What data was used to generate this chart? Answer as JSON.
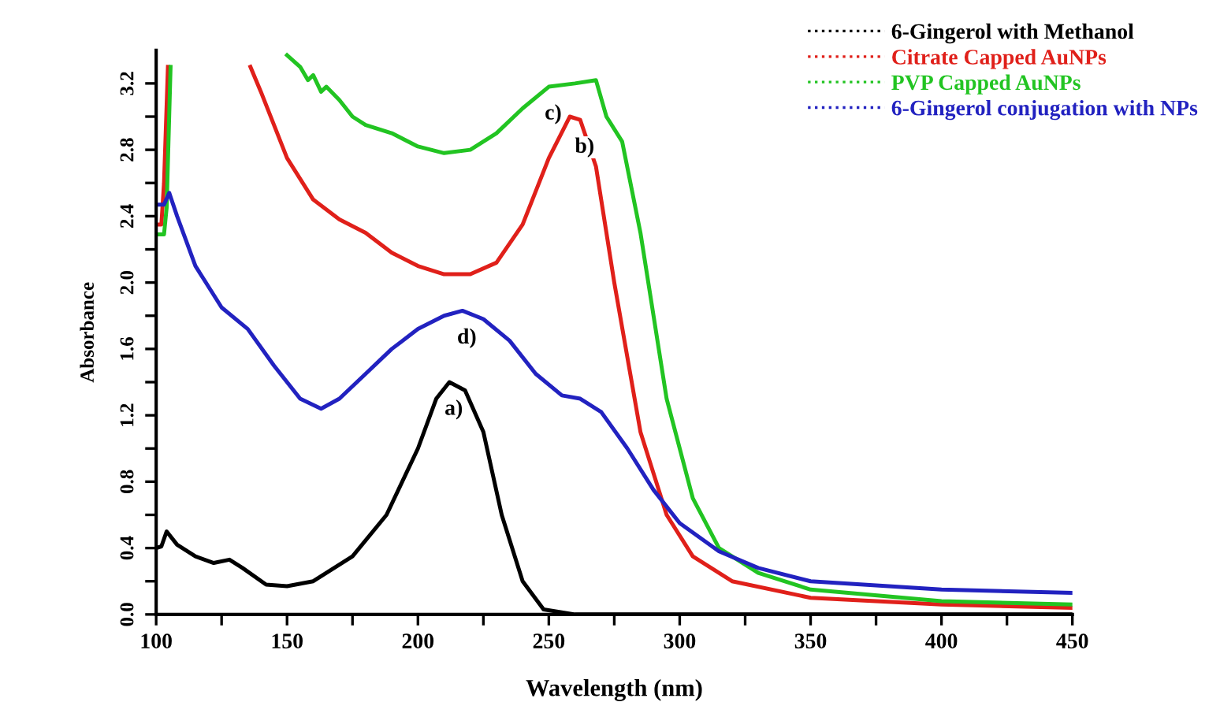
{
  "chart_data": {
    "type": "line",
    "xlabel": "Wavelength (nm)",
    "ylabel": "Absorbance",
    "xlim": [
      100,
      450
    ],
    "ylim": [
      0,
      3.4
    ],
    "xticks": [
      100,
      {
        "value": 125,
        "label": null
      },
      150,
      {
        "value": 175,
        "label": null
      },
      200,
      {
        "value": 225,
        "label": null
      },
      250,
      {
        "value": 275,
        "label": null
      },
      300,
      {
        "value": 325,
        "label": null
      },
      350,
      {
        "value": 375,
        "label": null
      },
      400,
      {
        "value": 425,
        "label": null
      },
      450
    ],
    "yticks": [
      {
        "value": 0,
        "label": "0.0"
      },
      {
        "value": 0.2,
        "label": null
      },
      {
        "value": 0.4,
        "label": "0.4"
      },
      {
        "value": 0.6,
        "label": null
      },
      {
        "value": 0.8,
        "label": "0.8"
      },
      {
        "value": 1.0,
        "label": null
      },
      {
        "value": 1.2,
        "label": "1.2"
      },
      {
        "value": 1.4,
        "label": null
      },
      {
        "value": 1.6,
        "label": "1.6"
      },
      {
        "value": 1.8,
        "label": null
      },
      {
        "value": 2.0,
        "label": "2.0"
      },
      {
        "value": 2.2,
        "label": null
      },
      {
        "value": 2.4,
        "label": "2.4"
      },
      {
        "value": 2.6,
        "label": null
      },
      {
        "value": 2.8,
        "label": "2.8"
      },
      {
        "value": 3.0,
        "label": null
      },
      {
        "value": 3.2,
        "label": "3.2"
      }
    ],
    "grid": false,
    "legend": "top right",
    "marker": "none",
    "line_style": "solid",
    "series": [
      {
        "name": "6-Gingerol with Methanol",
        "color": "#000000",
        "x": [
          100,
          102,
          104,
          108,
          115,
          122,
          128,
          133,
          142,
          150,
          160,
          175,
          188,
          200,
          207,
          212,
          218,
          225,
          232,
          240,
          248,
          260,
          300,
          450
        ],
        "values": [
          0.4,
          0.41,
          0.5,
          0.42,
          0.35,
          0.31,
          0.33,
          0.28,
          0.18,
          0.17,
          0.2,
          0.35,
          0.6,
          1.0,
          1.3,
          1.4,
          1.35,
          1.1,
          0.6,
          0.2,
          0.03,
          0.0,
          0.0,
          0.0
        ]
      },
      {
        "name": "Citrate Capped AuNPs",
        "color": "#e0201a",
        "x": [
          100,
          102,
          103,
          104.5,
          120,
          136,
          140,
          150,
          160,
          170,
          180,
          190,
          200,
          210,
          220,
          230,
          240,
          250,
          258,
          262,
          268,
          275,
          285,
          295,
          305,
          320,
          350,
          400,
          450
        ],
        "values": [
          2.35,
          2.35,
          2.6,
          3.3,
          null,
          3.3,
          3.15,
          2.75,
          2.5,
          2.38,
          2.3,
          2.18,
          2.1,
          2.05,
          2.05,
          2.12,
          2.35,
          2.75,
          3.0,
          2.98,
          2.7,
          2.0,
          1.1,
          0.6,
          0.35,
          0.2,
          0.1,
          0.06,
          0.04
        ]
      },
      {
        "name": "PVP Capped AuNPs",
        "color": "#22c422",
        "x": [
          100,
          103,
          104,
          105.5,
          130,
          150,
          155,
          158,
          160,
          163,
          165,
          170,
          175,
          180,
          190,
          200,
          210,
          220,
          230,
          240,
          250,
          260,
          268,
          272,
          278,
          285,
          295,
          305,
          315,
          330,
          350,
          400,
          450
        ],
        "values": [
          2.29,
          2.29,
          2.45,
          3.3,
          null,
          3.37,
          3.3,
          3.22,
          3.25,
          3.15,
          3.18,
          3.1,
          3.0,
          2.95,
          2.9,
          2.82,
          2.78,
          2.8,
          2.9,
          3.05,
          3.18,
          3.2,
          3.22,
          3.0,
          2.85,
          2.3,
          1.3,
          0.7,
          0.4,
          0.25,
          0.15,
          0.08,
          0.06
        ]
      },
      {
        "name": "6-Gingerol conjugation with NPs",
        "color": "#2222c0",
        "x": [
          100,
          103,
          105,
          108,
          115,
          125,
          135,
          145,
          155,
          163,
          170,
          180,
          190,
          200,
          210,
          217,
          225,
          235,
          245,
          255,
          262,
          270,
          280,
          290,
          300,
          315,
          330,
          350,
          400,
          450
        ],
        "values": [
          2.47,
          2.47,
          2.54,
          2.4,
          2.1,
          1.85,
          1.72,
          1.5,
          1.3,
          1.24,
          1.3,
          1.45,
          1.6,
          1.72,
          1.8,
          1.83,
          1.78,
          1.65,
          1.45,
          1.32,
          1.3,
          1.22,
          1.0,
          0.75,
          0.55,
          0.38,
          0.28,
          0.2,
          0.15,
          0.13
        ]
      }
    ],
    "annotations": [
      {
        "text": "a)",
        "x": 212,
        "y": 1.4
      },
      {
        "text": "b)",
        "x": 262,
        "y": 2.98
      },
      {
        "text": "c)",
        "x": 250,
        "y": 3.18
      },
      {
        "text": "d)",
        "x": 217,
        "y": 1.83
      }
    ]
  }
}
